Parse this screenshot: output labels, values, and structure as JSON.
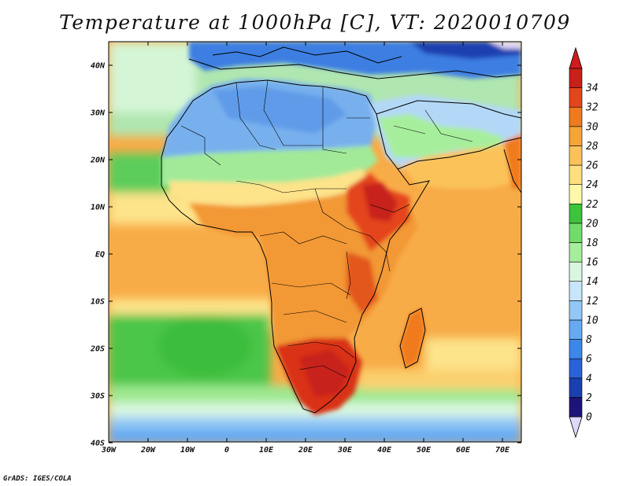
{
  "title": "Temperature at 1000hPa [C], VT: 2020010709",
  "credit": "GrADS: IGES/COLA",
  "lat_labels": [
    "40N",
    "30N",
    "20N",
    "10N",
    "EQ",
    "10S",
    "20S",
    "30S",
    "40S"
  ],
  "lon_labels": [
    "30W",
    "20W",
    "10W",
    "0",
    "10E",
    "20E",
    "30E",
    "40E",
    "50E",
    "60E",
    "70E"
  ],
  "colorbar": {
    "labels": [
      "0",
      "2",
      "4",
      "6",
      "8",
      "10",
      "12",
      "14",
      "16",
      "18",
      "20",
      "22",
      "24",
      "26",
      "28",
      "30",
      "32",
      "34"
    ],
    "colors": [
      "#1c1478",
      "#1a3fb0",
      "#2a62d8",
      "#3d86ea",
      "#67aaf2",
      "#93c8f6",
      "#c7e6fb",
      "#d9f7df",
      "#a7ee9c",
      "#70dc6a",
      "#3cc43c",
      "#fef9a9",
      "#fde07b",
      "#fbc25a",
      "#f7a437",
      "#f07a1e",
      "#e3461a",
      "#c8201a"
    ],
    "under_color": "#e0d8f8",
    "over_color": "#d01c1c"
  },
  "map": {
    "ocean_colors": {
      "south_atlantic": "#fbbf5e",
      "north_atlantic_tropical": "#f9b04b",
      "indian_ocean": "#f7a842",
      "southern_ocean_green": "#50c84c",
      "far_south": "#9dd8f5"
    },
    "land_colors": {
      "north_africa": "#78b0ee",
      "sahel": "#a2ea98",
      "central_africa": "#f29836",
      "east_africa_hot": "#e4451c",
      "southern_africa_hot": "#d93015",
      "europe": "#3e7ee2",
      "middle_east": "#b3d8f7"
    }
  }
}
